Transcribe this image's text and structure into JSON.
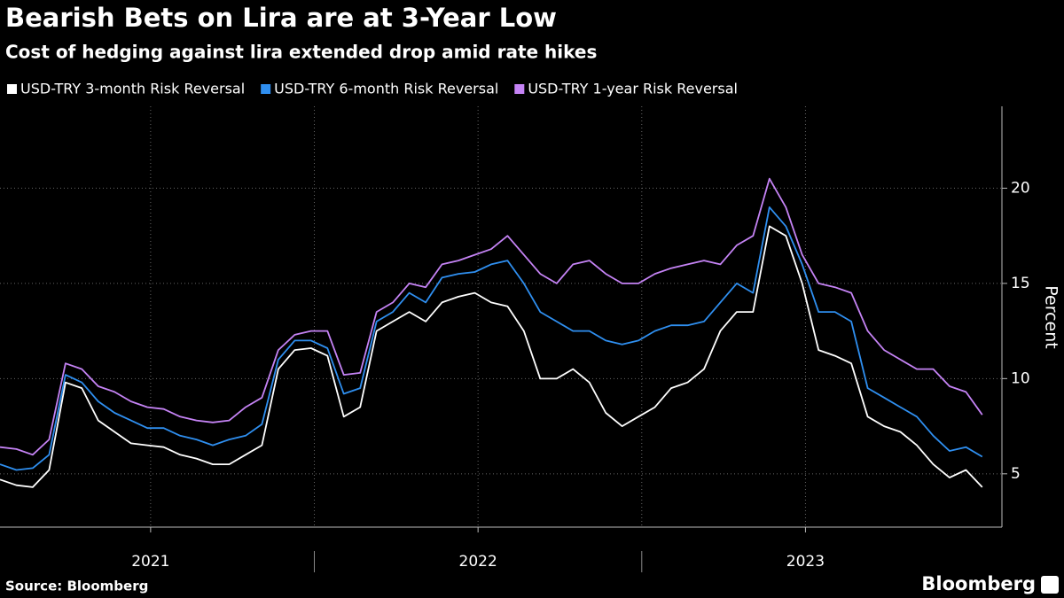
{
  "chart_data": {
    "type": "line",
    "title": "Bearish Bets on Lira are at 3-Year Low",
    "subtitle": "Cost of hedging against lira extended drop amid rate hikes",
    "y_label": "Percent",
    "source": "Source: Bloomberg",
    "brand": "Bloomberg",
    "x": [
      2021.04,
      2021.09,
      2021.14,
      2021.19,
      2021.24,
      2021.29,
      2021.34,
      2021.39,
      2021.44,
      2021.49,
      2021.54,
      2021.59,
      2021.64,
      2021.69,
      2021.74,
      2021.79,
      2021.84,
      2021.89,
      2021.94,
      2021.99,
      2022.04,
      2022.09,
      2022.14,
      2022.19,
      2022.24,
      2022.29,
      2022.34,
      2022.39,
      2022.44,
      2022.49,
      2022.54,
      2022.59,
      2022.64,
      2022.69,
      2022.74,
      2022.79,
      2022.84,
      2022.89,
      2022.94,
      2022.99,
      2023.04,
      2023.09,
      2023.14,
      2023.19,
      2023.24,
      2023.29,
      2023.34,
      2023.39,
      2023.44,
      2023.49,
      2023.54,
      2023.59,
      2023.64,
      2023.69,
      2023.74,
      2023.79,
      2023.84,
      2023.89,
      2023.94,
      2023.99,
      2024.04
    ],
    "series": [
      {
        "name": "USD-TRY 3-month Risk Reversal",
        "color": "#ffffff",
        "values": [
          4.7,
          4.4,
          4.3,
          5.2,
          9.8,
          9.5,
          7.8,
          7.2,
          6.6,
          6.5,
          6.4,
          6.0,
          5.8,
          5.5,
          5.5,
          6.0,
          6.5,
          10.5,
          11.5,
          11.6,
          11.2,
          8.0,
          8.5,
          12.5,
          13.0,
          13.5,
          13.0,
          14.0,
          14.3,
          14.5,
          14.0,
          13.8,
          12.5,
          10.0,
          10.0,
          10.5,
          9.8,
          8.2,
          7.5,
          8.0,
          8.5,
          9.5,
          9.8,
          10.5,
          12.5,
          13.5,
          13.5,
          18.0,
          17.5,
          15.0,
          11.5,
          11.2,
          10.8,
          8.0,
          7.5,
          7.2,
          6.5,
          5.5,
          4.8,
          5.2,
          4.3
        ]
      },
      {
        "name": "USD-TRY 6-month Risk Reversal",
        "color": "#2f8ff0",
        "values": [
          5.5,
          5.2,
          5.3,
          6.0,
          10.2,
          9.8,
          8.8,
          8.2,
          7.8,
          7.4,
          7.4,
          7.0,
          6.8,
          6.5,
          6.8,
          7.0,
          7.6,
          11.0,
          12.0,
          12.0,
          11.6,
          9.2,
          9.5,
          13.0,
          13.5,
          14.5,
          14.0,
          15.3,
          15.5,
          15.6,
          16.0,
          16.2,
          15.0,
          13.5,
          13.0,
          12.5,
          12.5,
          12.0,
          11.8,
          12.0,
          12.5,
          12.8,
          12.8,
          13.0,
          14.0,
          15.0,
          14.5,
          19.0,
          18.0,
          16.0,
          13.5,
          13.5,
          13.0,
          9.5,
          9.0,
          8.5,
          8.0,
          7.0,
          6.2,
          6.4,
          5.9
        ]
      },
      {
        "name": "USD-TRY 1-year Risk Reversal",
        "color": "#c583f5",
        "values": [
          6.4,
          6.3,
          6.0,
          6.8,
          10.8,
          10.5,
          9.6,
          9.3,
          8.8,
          8.5,
          8.4,
          8.0,
          7.8,
          7.7,
          7.8,
          8.5,
          9.0,
          11.5,
          12.3,
          12.5,
          12.5,
          10.2,
          10.3,
          13.5,
          14.0,
          15.0,
          14.8,
          16.0,
          16.2,
          16.5,
          16.8,
          17.5,
          16.5,
          15.5,
          15.0,
          16.0,
          16.2,
          15.5,
          15.0,
          15.0,
          15.5,
          15.8,
          16.0,
          16.2,
          16.0,
          17.0,
          17.5,
          20.5,
          19.0,
          16.5,
          15.0,
          14.8,
          14.5,
          12.5,
          11.5,
          11.0,
          10.5,
          10.5,
          9.6,
          9.3,
          8.1
        ]
      }
    ],
    "xlim": [
      2021.04,
      2024.1
    ],
    "xticks": [
      {
        "value": 2021.5,
        "label": "2021"
      },
      {
        "value": 2022.5,
        "label": "2022"
      },
      {
        "value": 2023.5,
        "label": "2023"
      }
    ],
    "ylim": [
      2.2,
      24.3
    ],
    "yticks": [
      5,
      10,
      15,
      20
    ],
    "grid": true
  }
}
